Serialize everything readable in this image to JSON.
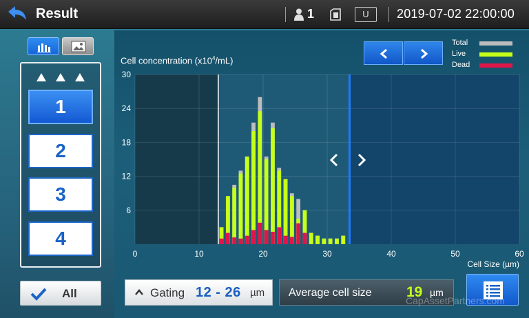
{
  "header": {
    "title": "Result",
    "user_count": "1",
    "usb_label": "U",
    "datetime": "2019-07-02  22:00:00"
  },
  "samples": {
    "items": [
      {
        "label": "1",
        "active": true
      },
      {
        "label": "2",
        "active": false
      },
      {
        "label": "3",
        "active": false
      },
      {
        "label": "4",
        "active": false
      }
    ],
    "all_label": "All"
  },
  "chart_data": {
    "type": "bar",
    "title": "",
    "ylabel": "Cell concentration (x10⁴/mL)",
    "xlabel": "Cell Size (µm)",
    "xlim": [
      0,
      60
    ],
    "ylim": [
      0,
      30
    ],
    "x_ticks": [
      0,
      10,
      20,
      30,
      40,
      50,
      60
    ],
    "y_ticks": [
      6,
      12,
      18,
      24,
      30
    ],
    "legend": [
      {
        "name": "Total",
        "color": "#bdbdbd"
      },
      {
        "name": "Live",
        "color": "#c6ff1a"
      },
      {
        "name": "Dead",
        "color": "#e0154a"
      }
    ],
    "gate_lines": [
      13,
      33.5
    ],
    "x": [
      13,
      14,
      15,
      16,
      17,
      18,
      19,
      20,
      21,
      22,
      23,
      24,
      25,
      26,
      27,
      28,
      29,
      30,
      31,
      32
    ],
    "series": [
      {
        "name": "Total",
        "values": [
          3,
          8.5,
          10.5,
          13,
          15.5,
          21.5,
          26,
          15.5,
          21.5,
          13.5,
          11.5,
          9,
          8,
          6,
          2,
          1.5,
          1,
          1,
          1,
          1.5
        ]
      },
      {
        "name": "Live",
        "values": [
          3,
          8.5,
          10,
          12.5,
          15.5,
          20,
          23.5,
          15,
          20.5,
          13,
          11.5,
          8.5,
          4.5,
          6,
          2,
          1.5,
          1,
          1,
          1,
          1.5
        ]
      },
      {
        "name": "Dead",
        "values": [
          1,
          2,
          1.2,
          1,
          1.5,
          2.5,
          3.8,
          2.5,
          2.2,
          3,
          1.5,
          1.3,
          3.7,
          2,
          0,
          0,
          0,
          0,
          0,
          0
        ]
      }
    ]
  },
  "gating": {
    "label": "Gating",
    "range": "12 - 26",
    "unit": "µm"
  },
  "average": {
    "label": "Average cell size",
    "value": "19",
    "unit": "µm"
  },
  "watermark": "CapAssetPartners.com",
  "colors": {
    "accent_blue": "#1a63c6",
    "live": "#c6ff1a",
    "dead": "#e0154a",
    "total": "#bdbdbd"
  }
}
